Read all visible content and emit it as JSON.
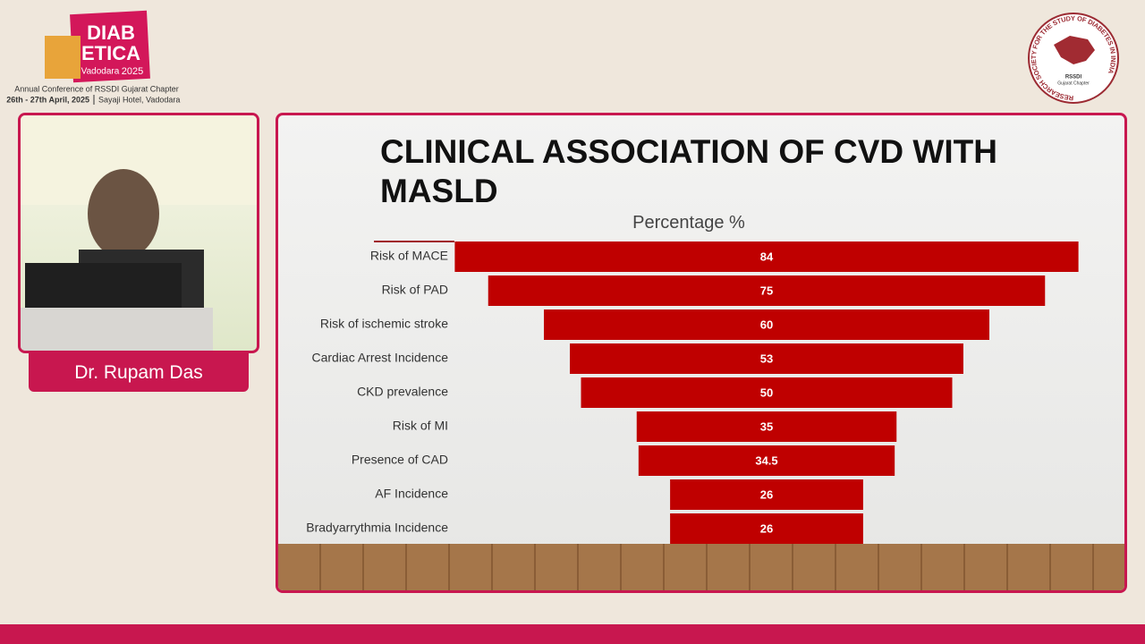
{
  "conference": {
    "brand_line1": "DIAB",
    "brand_line2": "ETICA",
    "city": "Vadodara",
    "year": "2025",
    "subtitle": "Annual Conference of RSSDI Gujarat Chapter",
    "dates": "26th - 27th April, 2025",
    "venue": "Sayaji Hotel, Vadodara"
  },
  "society_logo": {
    "ring_text": "RESEARCH SOCIETY FOR THE STUDY OF DIABETES IN INDIA",
    "center_line1": "RSSDI",
    "center_line2": "Gujarat Chapter"
  },
  "speaker": {
    "name": "Dr. Rupam Das"
  },
  "chart_data": {
    "type": "funnel",
    "title": "CLINICAL ASSOCIATION OF CVD WITH MASLD",
    "subtitle": "Percentage %",
    "categories": [
      "Risk of MACE",
      "Risk of PAD",
      "Risk of ischemic stroke",
      "Cardiac Arrest Incidence",
      "CKD prevalence",
      "Risk of MI",
      "Presence of CAD",
      "AF Incidence",
      "Bradyarrythmia Incidence"
    ],
    "values": [
      84,
      75,
      60,
      53,
      50,
      35,
      34.5,
      26,
      26
    ],
    "color": "#bf0000"
  }
}
